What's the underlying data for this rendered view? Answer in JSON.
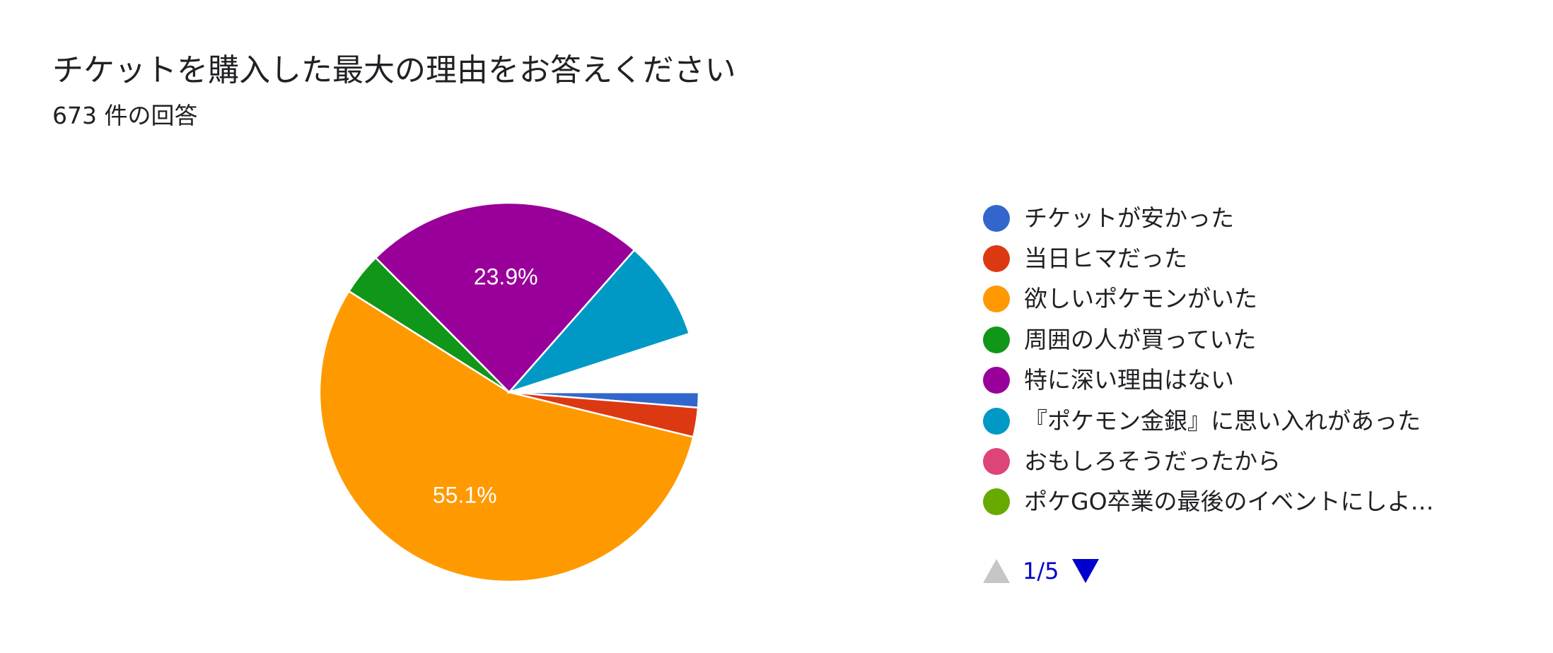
{
  "header": {
    "title": "チケットを購入した最大の理由をお答えください",
    "response_count": "673 件の回答"
  },
  "chart_data": {
    "type": "pie",
    "title": "チケットを購入した最大の理由をお答えください",
    "slices": [
      {
        "label": "チケットが安かった",
        "value": 1.3,
        "color": "#3366cc"
      },
      {
        "label": "当日ヒマだった",
        "value": 2.5,
        "color": "#dc3912"
      },
      {
        "label": "欲しいポケモンがいた",
        "value": 55.1,
        "color": "#ff9900",
        "data_label": "55.1%"
      },
      {
        "label": "周囲の人が買っていた",
        "value": 3.6,
        "color": "#109618"
      },
      {
        "label": "特に深い理由はない",
        "value": 23.9,
        "color": "#990099",
        "data_label": "23.9%"
      },
      {
        "label": "『ポケモン金銀』に思い入れがあった",
        "value": 8.5,
        "color": "#0099c6"
      },
      {
        "label": "おもしろそうだったから",
        "value": 0,
        "color": "#dd4477"
      },
      {
        "label": "ポケGO卒業の最後のイベントにしようと思った",
        "value": 0,
        "color": "#66aa00"
      },
      {
        "label": "",
        "value": 5.0,
        "color": "#ffffff"
      }
    ],
    "legend": {
      "position": "right",
      "entries": [
        {
          "label": "チケットが安かった",
          "color": "#3366cc"
        },
        {
          "label": "当日ヒマだった",
          "color": "#dc3912"
        },
        {
          "label": "欲しいポケモンがいた",
          "color": "#ff9900"
        },
        {
          "label": "周囲の人が買っていた",
          "color": "#109618"
        },
        {
          "label": "特に深い理由はない",
          "color": "#990099"
        },
        {
          "label": "『ポケモン金銀』に思い入れがあった",
          "color": "#0099c6"
        },
        {
          "label": "おもしろそうだったから",
          "color": "#dd4477"
        },
        {
          "label": "ポケGO卒業の最後のイベントにしよ…",
          "color": "#66aa00"
        }
      ]
    }
  },
  "pager": {
    "status": "1/5",
    "prev_color": "#c6c6c6",
    "next_color": "#0000cc"
  }
}
